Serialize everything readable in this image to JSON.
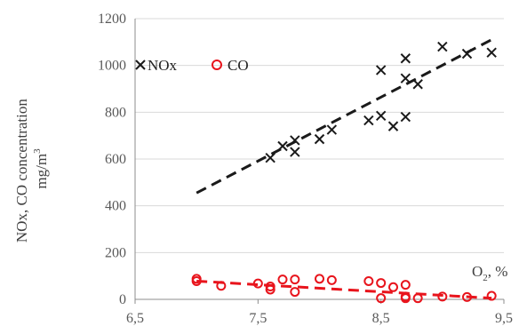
{
  "chart_data": {
    "type": "scatter",
    "xlabel": "O",
    "xlabel_sub": "2",
    "xlabel_suffix": ", %",
    "ylabel_line1": "NOx, CO concentration",
    "ylabel_line2": "mg/m",
    "ylabel_sup": "3",
    "xlim": [
      6.5,
      9.5
    ],
    "ylim": [
      0,
      1200
    ],
    "xticks": [
      6.5,
      7.5,
      8.5,
      9.5
    ],
    "xtick_labels": [
      "6,5",
      "7,5",
      "8,5",
      "9,5"
    ],
    "yticks": [
      0,
      200,
      400,
      600,
      800,
      1000,
      1200
    ],
    "ytick_labels": [
      "0",
      "200",
      "400",
      "600",
      "800",
      "1000",
      "1200"
    ],
    "grid": "horizontal",
    "legend_position": "top-left",
    "series": [
      {
        "name": "NOx",
        "marker": "x",
        "color": "#1a1a1a",
        "x": [
          7.6,
          7.7,
          7.8,
          7.8,
          8.0,
          8.1,
          8.4,
          8.5,
          8.5,
          8.6,
          8.7,
          8.7,
          8.7,
          8.8,
          9.0,
          9.2,
          9.4
        ],
        "y": [
          605,
          655,
          680,
          630,
          685,
          725,
          765,
          785,
          980,
          740,
          1030,
          945,
          780,
          920,
          1080,
          1050,
          1055
        ],
        "trend": {
          "x": [
            7.0,
            9.4
          ],
          "y": [
            455,
            1110
          ]
        }
      },
      {
        "name": "CO",
        "marker": "o",
        "color": "#e8141c",
        "x": [
          7.0,
          7.0,
          7.2,
          7.5,
          7.6,
          7.6,
          7.7,
          7.8,
          7.8,
          8.0,
          8.1,
          8.4,
          8.5,
          8.5,
          8.6,
          8.7,
          8.7,
          8.7,
          8.8,
          9.0,
          9.2,
          9.4
        ],
        "y": [
          88,
          78,
          58,
          68,
          55,
          42,
          85,
          85,
          32,
          88,
          82,
          78,
          70,
          5,
          52,
          62,
          12,
          5,
          5,
          12,
          10,
          15
        ],
        "trend": {
          "x": [
            7.0,
            9.4
          ],
          "y": [
            78,
            5
          ]
        }
      }
    ]
  }
}
